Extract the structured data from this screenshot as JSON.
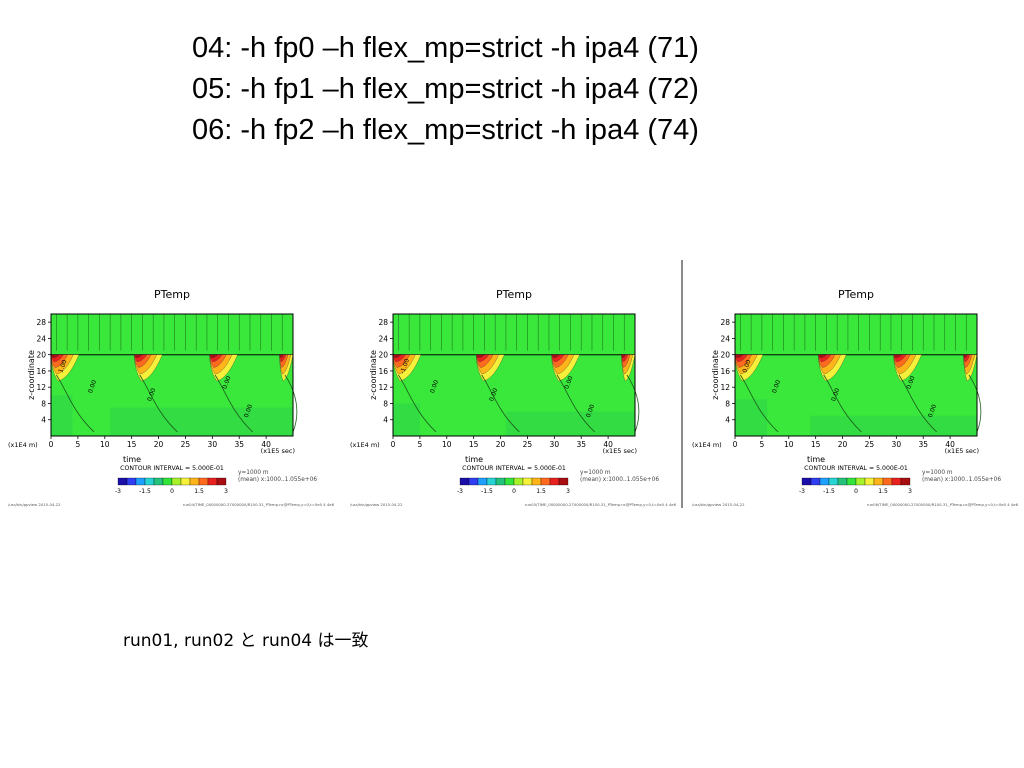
{
  "slide": {
    "title_lines": [
      "04: -h fp0 –h flex_mp=strict -h ipa4 (71)",
      "05: -h fp1 –h flex_mp=strict -h ipa4 (72)",
      "06: -h fp2 –h flex_mp=strict -h ipa4 (74)"
    ],
    "note": "run01, run02 と run04 は一致"
  },
  "chart_data": [
    {
      "type": "heatmap",
      "title": "PTemp",
      "xlabel": "time",
      "ylabel": "z-coordinate",
      "x_scale_label": "(x1E5 sec)",
      "y_scale_label": "(x1E4 m)",
      "x_ticks": [
        0,
        5,
        10,
        15,
        20,
        25,
        30,
        35,
        40
      ],
      "y_ticks": [
        4,
        8,
        12,
        16,
        20,
        24,
        28
      ],
      "xlim": [
        0,
        45
      ],
      "ylim": [
        0,
        30
      ],
      "contour_labels": [
        "1.00",
        "0.00",
        "0.00",
        "0.00",
        "0.00"
      ],
      "legend_title": "CONTOUR INTERVAL = 5.000E-01",
      "legend_ticks": [
        "-3",
        "-1.5",
        "0",
        "1.5",
        "3"
      ],
      "legend_colors": [
        "#1a0fa8",
        "#2f3ef0",
        "#1fa0ff",
        "#26d4d4",
        "#24c27a",
        "#33e53a",
        "#a7f22a",
        "#f5f03a",
        "#ffb419",
        "#ff6a1f",
        "#e8211f",
        "#a80d12"
      ],
      "meta_lines": [
        "y=1000 m",
        "(mean) x:1000..1.055e+06"
      ],
      "footer_left": "/usr/bin/gpview   2015-04-22",
      "footer_right": "run04/TIME_00000000-27000000/R100-31_PTemp.nc@PTemp,y=0,t=0e0 4 4e6"
    },
    {
      "type": "heatmap",
      "title": "PTemp",
      "xlabel": "time",
      "ylabel": "z-coordinate",
      "x_scale_label": "(x1E5 sec)",
      "y_scale_label": "(x1E4 m)",
      "x_ticks": [
        0,
        5,
        10,
        15,
        20,
        25,
        30,
        35,
        40
      ],
      "y_ticks": [
        4,
        8,
        12,
        16,
        20,
        24,
        28
      ],
      "xlim": [
        0,
        45
      ],
      "ylim": [
        0,
        30
      ],
      "contour_labels": [
        "-1.00",
        "0.00",
        "0.00",
        "0.00",
        "0.00"
      ],
      "legend_title": "CONTOUR INTERVAL = 5.000E-01",
      "legend_ticks": [
        "-3",
        "-1.5",
        "0",
        "1.5",
        "3"
      ],
      "legend_colors": [
        "#1a0fa8",
        "#2f3ef0",
        "#1fa0ff",
        "#26d4d4",
        "#24c27a",
        "#33e53a",
        "#a7f22a",
        "#f5f03a",
        "#ffb419",
        "#ff6a1f",
        "#e8211f",
        "#a80d12"
      ],
      "meta_lines": [
        "y=1000 m",
        "(mean) x:1000..1.055e+06"
      ],
      "footer_left": "/usr/bin/gpview   2015-04-22",
      "footer_right": "run05/TIME_00000000-27000000/R100-31_PTemp.nc@PTemp,y=0,t=0e0 4 4e6"
    },
    {
      "type": "heatmap",
      "title": "PTemp",
      "xlabel": "time",
      "ylabel": "z-coordinate",
      "x_scale_label": "(x1E5 sec)",
      "y_scale_label": "(x1E4 m)",
      "x_ticks": [
        0,
        5,
        10,
        15,
        20,
        25,
        30,
        35,
        40
      ],
      "y_ticks": [
        4,
        8,
        12,
        16,
        20,
        24,
        28
      ],
      "xlim": [
        0,
        45
      ],
      "ylim": [
        0,
        30
      ],
      "contour_labels": [
        "0.00",
        "0.00",
        "0.00",
        "0.00",
        "0.00"
      ],
      "legend_title": "CONTOUR INTERVAL = 5.000E-01",
      "legend_ticks": [
        "-3",
        "-1.5",
        "0",
        "1.5",
        "3"
      ],
      "legend_colors": [
        "#1a0fa8",
        "#2f3ef0",
        "#1fa0ff",
        "#26d4d4",
        "#24c27a",
        "#33e53a",
        "#a7f22a",
        "#f5f03a",
        "#ffb419",
        "#ff6a1f",
        "#e8211f",
        "#a80d12"
      ],
      "meta_lines": [
        "y=1000 m",
        "(mean) x:1000..1.055e+06"
      ],
      "footer_left": "/usr/bin/gpview   2015-04-22",
      "footer_right": "run06/TIME_00000000-27000000/R100-31_PTemp.nc@PTemp,y=0,t=0e0 4 4e6"
    }
  ]
}
